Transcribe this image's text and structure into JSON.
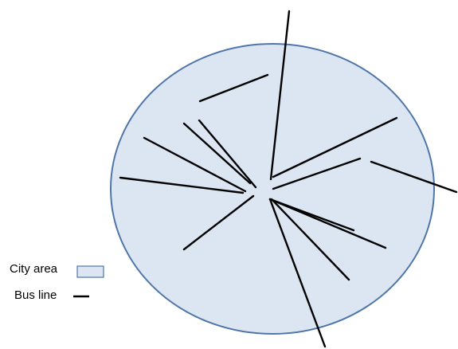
{
  "colors": {
    "city_fill": "#dce6f2",
    "city_stroke": "#4f76a8",
    "bus_line": "#000000"
  },
  "legend": {
    "city_area_label": "City area",
    "bus_line_label": "Bus line"
  }
}
